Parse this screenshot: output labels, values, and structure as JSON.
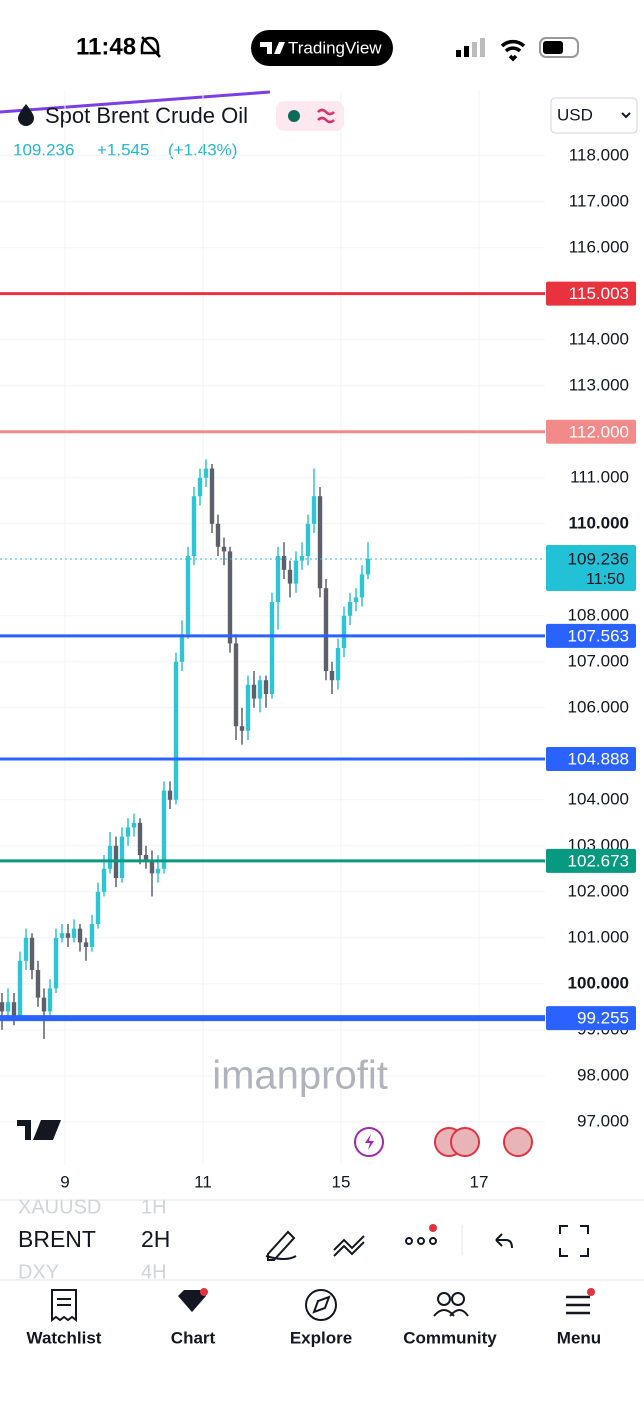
{
  "status_bar": {
    "time": "11:48",
    "app_pill": "TradingView"
  },
  "header": {
    "symbol": "Spot Brent Crude Oil",
    "price": "109.236",
    "change": "+1.545",
    "change_pct": "(+1.43%)",
    "currency": "USD"
  },
  "watermark": "imanprofit",
  "chart": {
    "type": "candlestick",
    "ylim": [
      96.17,
      119.43
    ],
    "yticks": [
      {
        "value": 118,
        "label": "118.000"
      },
      {
        "value": 117,
        "label": "117.000"
      },
      {
        "value": 116,
        "label": "116.000"
      },
      {
        "value": 114,
        "label": "114.000"
      },
      {
        "value": 113,
        "label": "113.000"
      },
      {
        "value": 111,
        "label": "111.000"
      },
      {
        "value": 110,
        "label": "110.000"
      },
      {
        "value": 108,
        "label": "108.000"
      },
      {
        "value": 107,
        "label": "107.000"
      },
      {
        "value": 106,
        "label": "106.000"
      },
      {
        "value": 104,
        "label": "104.000"
      },
      {
        "value": 103,
        "label": "103.000"
      },
      {
        "value": 102,
        "label": "102.000"
      },
      {
        "value": 101,
        "label": "101.000"
      },
      {
        "value": 100,
        "label": "100.000"
      },
      {
        "value": 99,
        "label": "99.000"
      },
      {
        "value": 98,
        "label": "98.000"
      },
      {
        "value": 97,
        "label": "97.000"
      }
    ],
    "x_labels": [
      "9",
      "11",
      "15",
      "17"
    ],
    "up_color": "#2ec4d4",
    "down_color": "#5d606b",
    "levels": [
      {
        "value": 115.003,
        "color": "#e8333f",
        "width": 3
      },
      {
        "value": {
          "value": 112,
          "label": "112.000"
        },
        "color": "#f28a8a",
        "width": 3
      },
      {
        "value": 107.563,
        "color": "#2962ff",
        "width": 3
      },
      {
        "value": 104.888,
        "color": "#2962ff",
        "width": 3
      },
      {
        "value": 102.673,
        "color": "#089981",
        "width": 3
      },
      {
        "value": 99.255,
        "color": "#2962ff",
        "width": 6
      }
    ],
    "last_price": 109.236,
    "countdown": "11:50",
    "last_color": "#22c1d6",
    "candles": [
      [
        99.6,
        99.8,
        99.0,
        99.4
      ],
      [
        99.4,
        99.9,
        99.2,
        99.6
      ],
      [
        99.6,
        99.8,
        99.1,
        99.3
      ],
      [
        99.3,
        100.7,
        99.2,
        100.5
      ],
      [
        100.5,
        101.2,
        100.3,
        101.0
      ],
      [
        101.0,
        101.1,
        100.1,
        100.3
      ],
      [
        100.3,
        100.5,
        99.5,
        99.7
      ],
      [
        99.7,
        99.9,
        98.8,
        99.4
      ],
      [
        99.4,
        100.1,
        99.2,
        99.9
      ],
      [
        99.9,
        101.2,
        99.8,
        101.0
      ],
      [
        101.0,
        101.3,
        100.9,
        101.1
      ],
      [
        101.1,
        101.3,
        100.8,
        101.0
      ],
      [
        101.0,
        101.4,
        100.9,
        101.2
      ],
      [
        101.2,
        101.3,
        100.7,
        100.9
      ],
      [
        100.9,
        101.0,
        100.5,
        100.8
      ],
      [
        100.8,
        101.5,
        100.7,
        101.3
      ],
      [
        101.3,
        102.2,
        101.2,
        102.0
      ],
      [
        102.0,
        102.8,
        101.9,
        102.5
      ],
      [
        102.5,
        103.3,
        102.4,
        103.0
      ],
      [
        103.0,
        103.2,
        102.1,
        102.3
      ],
      [
        102.3,
        103.4,
        102.2,
        103.2
      ],
      [
        103.2,
        103.6,
        103.0,
        103.4
      ],
      [
        103.4,
        103.7,
        103.2,
        103.5
      ],
      [
        103.5,
        103.6,
        102.6,
        102.8
      ],
      [
        102.8,
        103.0,
        102.5,
        102.7
      ],
      [
        102.7,
        102.9,
        101.9,
        102.4
      ],
      [
        102.4,
        102.8,
        102.2,
        102.5
      ],
      [
        102.5,
        104.4,
        102.4,
        104.2
      ],
      [
        104.2,
        104.4,
        103.8,
        104.0
      ],
      [
        104.0,
        107.2,
        103.9,
        107.0
      ],
      [
        107.0,
        107.9,
        106.8,
        107.6
      ],
      [
        107.6,
        109.5,
        107.5,
        109.3
      ],
      [
        109.3,
        110.8,
        109.1,
        110.6
      ],
      [
        110.6,
        111.2,
        110.4,
        111.0
      ],
      [
        111.0,
        111.4,
        110.8,
        111.2
      ],
      [
        111.2,
        111.3,
        109.8,
        110.0
      ],
      [
        110.0,
        110.2,
        109.3,
        109.5
      ],
      [
        109.5,
        109.7,
        109.1,
        109.4
      ],
      [
        109.4,
        109.5,
        107.2,
        107.4
      ],
      [
        107.4,
        107.6,
        105.3,
        105.6
      ],
      [
        105.6,
        106.0,
        105.2,
        105.5
      ],
      [
        105.5,
        106.7,
        105.3,
        106.5
      ],
      [
        106.5,
        106.8,
        106.0,
        106.2
      ],
      [
        106.2,
        106.7,
        105.9,
        106.6
      ],
      [
        106.6,
        106.7,
        106.0,
        106.3
      ],
      [
        106.3,
        108.5,
        106.2,
        108.3
      ],
      [
        108.3,
        109.5,
        107.7,
        109.3
      ],
      [
        109.3,
        109.6,
        108.8,
        109.0
      ],
      [
        109.0,
        109.2,
        108.4,
        108.7
      ],
      [
        108.7,
        109.4,
        108.5,
        109.2
      ],
      [
        109.2,
        109.6,
        109.0,
        109.3
      ],
      [
        109.3,
        110.2,
        109.1,
        110.0
      ],
      [
        110.0,
        111.2,
        109.8,
        110.6
      ],
      [
        110.6,
        110.8,
        108.4,
        108.6
      ],
      [
        108.6,
        108.8,
        106.6,
        106.8
      ],
      [
        106.8,
        107.0,
        106.3,
        106.6
      ],
      [
        106.6,
        107.5,
        106.4,
        107.3
      ],
      [
        107.3,
        108.2,
        107.1,
        108.0
      ],
      [
        108.0,
        108.5,
        107.8,
        108.3
      ],
      [
        108.3,
        108.6,
        108.1,
        108.4
      ],
      [
        108.4,
        109.1,
        108.2,
        108.9
      ],
      [
        108.9,
        109.6,
        108.8,
        109.236
      ]
    ]
  },
  "symbols": [
    {
      "name": "XAUUSD",
      "interval": "1H"
    },
    {
      "name": "BRENT",
      "interval": "2H"
    },
    {
      "name": "DXY",
      "interval": "4H"
    }
  ],
  "nav": [
    "Watchlist",
    "Chart",
    "Explore",
    "Community",
    "Menu"
  ]
}
